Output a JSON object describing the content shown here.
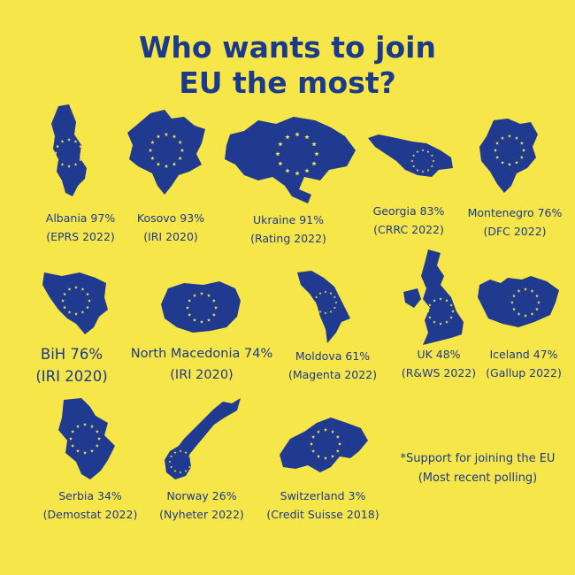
{
  "title": {
    "line1": "Who wants to join",
    "line2": "EU the most?"
  },
  "colors": {
    "background": "#f7e64a",
    "map_fill": "#1f3a8e",
    "stars": "#f7e64a",
    "text": "#1c3a8a"
  },
  "icon": "eu-star-ring-icon",
  "countries": [
    {
      "key": "albania",
      "name_line": "Albania 97%",
      "source_line": "(EPRS 2022)"
    },
    {
      "key": "kosovo",
      "name_line": "Kosovo 93%",
      "source_line": "(IRI 2020)"
    },
    {
      "key": "ukraine",
      "name_line": "Ukraine 91%",
      "source_line": "(Rating 2022)"
    },
    {
      "key": "georgia",
      "name_line": "Georgia 83%",
      "source_line": "(CRRC 2022)"
    },
    {
      "key": "montenegro",
      "name_line": "Montenegro 76%",
      "source_line": "(DFC 2022)"
    },
    {
      "key": "bih",
      "name_line": "BiH 76%",
      "source_line": "(IRI 2020)"
    },
    {
      "key": "north-macedonia",
      "name_line": "North Macedonia 74%",
      "source_line": "(IRI 2020)"
    },
    {
      "key": "moldova",
      "name_line": "Moldova 61%",
      "source_line": "(Magenta 2022)"
    },
    {
      "key": "uk",
      "name_line": "UK 48%",
      "source_line": "(R&WS 2022)"
    },
    {
      "key": "iceland",
      "name_line": "Iceland 47%",
      "source_line": "(Gallup 2022)"
    },
    {
      "key": "serbia",
      "name_line": "Serbia 34%",
      "source_line": "(Demostat 2022)"
    },
    {
      "key": "norway",
      "name_line": "Norway 26%",
      "source_line": "(Nyheter 2022)"
    },
    {
      "key": "switzerland",
      "name_line": "Switzerland 3%",
      "source_line": "(Credit Suisse 2018)"
    }
  ],
  "footnote": {
    "line1": "*Support for joining the EU",
    "line2": "(Most recent polling)"
  }
}
